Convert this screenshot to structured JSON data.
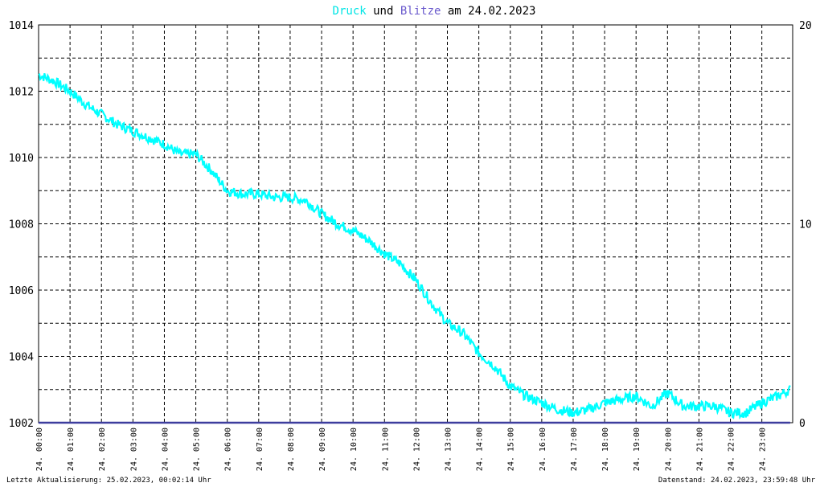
{
  "title": {
    "part1": "Druck",
    "part2": " und ",
    "part3": "Blitze",
    "part4": " am 24.02.2023"
  },
  "footer": {
    "left": "Letzte Aktualisierung: 25.02.2023, 00:02:14 Uhr",
    "right": "Datenstand: 24.02.2023, 23:59:48 Uhr"
  },
  "colors": {
    "pressure": "#00ffff",
    "lightning": "#3d3d9e",
    "title_pressure": "#00e5e5",
    "title_lightning": "#6a5acd",
    "grid": "#000000",
    "background": "#ffffff"
  },
  "chart_data": {
    "type": "line",
    "title": "Druck und Blitze am 24.02.2023",
    "x_label": "",
    "y_label_left": "",
    "y_label_right": "",
    "y_left_range": [
      1002,
      1014
    ],
    "y_left_ticks": [
      "1002",
      "1004",
      "1006",
      "1008",
      "1010",
      "1012",
      "1014"
    ],
    "y_right_range": [
      0,
      20
    ],
    "y_right_ticks": [
      "0",
      "10",
      "20"
    ],
    "grid": true,
    "x_ticks": [
      "24. 00:00",
      "24. 01:00",
      "24. 02:00",
      "24. 03:00",
      "24. 04:00",
      "24. 05:00",
      "24. 06:00",
      "24. 07:00",
      "24. 08:00",
      "24. 09:00",
      "24. 10:00",
      "24. 11:00",
      "24. 12:00",
      "24. 13:00",
      "24. 14:00",
      "24. 15:00",
      "24. 16:00",
      "24. 17:00",
      "24. 18:00",
      "24. 19:00",
      "24. 20:00",
      "24. 21:00",
      "24. 22:00",
      "24. 23:00"
    ],
    "series": [
      {
        "name": "Druck",
        "axis": "left",
        "x_hours": [
          0,
          0.5,
          1,
          1.5,
          2,
          2.5,
          3,
          3.5,
          4,
          4.5,
          5,
          5.5,
          6,
          6.5,
          7,
          7.5,
          8,
          8.5,
          9,
          9.5,
          10,
          10.5,
          11,
          11.5,
          12,
          12.5,
          13,
          13.5,
          14,
          14.5,
          15,
          15.5,
          16,
          16.5,
          17,
          17.5,
          18,
          18.5,
          19,
          19.5,
          20,
          20.5,
          21,
          21.5,
          22,
          22.5,
          23,
          23.5,
          23.9
        ],
        "values": [
          1012.5,
          1012.3,
          1012.0,
          1011.6,
          1011.3,
          1011.0,
          1010.8,
          1010.6,
          1010.4,
          1010.1,
          1010.1,
          1009.6,
          1009.0,
          1008.9,
          1008.9,
          1008.8,
          1008.8,
          1008.7,
          1008.3,
          1008.0,
          1007.8,
          1007.5,
          1007.1,
          1006.8,
          1006.3,
          1005.6,
          1005.0,
          1004.7,
          1004.1,
          1003.7,
          1003.1,
          1002.8,
          1002.6,
          1002.4,
          1002.3,
          1002.4,
          1002.6,
          1002.7,
          1002.8,
          1002.5,
          1002.9,
          1002.5,
          1002.5,
          1002.5,
          1002.3,
          1002.3,
          1002.6,
          1002.8,
          1003.0
        ]
      },
      {
        "name": "Blitze",
        "axis": "right",
        "x_hours": [
          0,
          23.9
        ],
        "values": [
          0,
          0
        ]
      }
    ]
  }
}
